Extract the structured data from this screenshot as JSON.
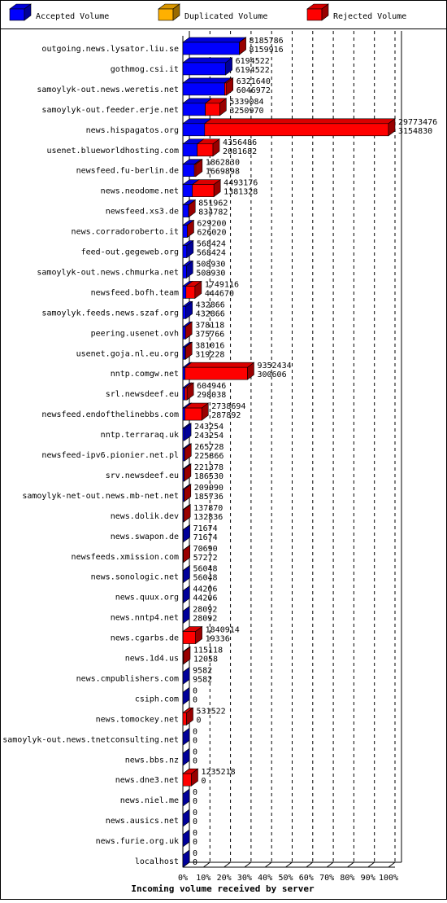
{
  "chart_data": {
    "type": "bar3d",
    "x_label": "Incoming volume received by server",
    "legend": [
      {
        "name": "Accepted Volume",
        "color": "#0000ff"
      },
      {
        "name": "Duplicated Volume",
        "color": "#ffb000"
      },
      {
        "name": "Rejected Volume",
        "color": "#ff0000"
      }
    ],
    "categories": [
      "outgoing.news.lysator.liu.se",
      "gothmog.csi.it",
      "samoylyk-out.news.weretis.net",
      "samoylyk-out.feeder.erje.net",
      "news.hispagatos.org",
      "usenet.blueworldhosting.com",
      "newsfeed.fu-berlin.de",
      "news.neodome.net",
      "newsfeed.xs3.de",
      "news.corradoroberto.it",
      "feed-out.gegeweb.org",
      "samoylyk-out.news.chmurka.net",
      "newsfeed.bofh.team",
      "samoylyk.feeds.news.szaf.org",
      "peering.usenet.ovh",
      "usenet.goja.nl.eu.org",
      "nntp.comgw.net",
      "srl.newsdeef.eu",
      "newsfeed.endofthelinebbs.com",
      "nntp.terraraq.uk",
      "newsfeed-ipv6.pionier.net.pl",
      "srv.newsdeef.eu",
      "samoylyk-net-out.news.mb-net.net",
      "news.dolik.dev",
      "news.swapon.de",
      "newsfeeds.xmission.com",
      "news.sonologic.net",
      "news.quux.org",
      "news.nntp4.net",
      "news.cgarbs.de",
      "news.1d4.us",
      "news.cmpublishers.com",
      "csiph.com",
      "news.tomockey.net",
      "samoylyk-out.news.tnetconsulting.net",
      "news.bbs.nz",
      "news.dne3.net",
      "news.niel.me",
      "news.ausics.net",
      "news.furie.org.uk",
      "localhost"
    ],
    "total_values": [
      8185786,
      6194522,
      6321640,
      5339084,
      29773476,
      4356486,
      1862830,
      4493176,
      851962,
      629200,
      568424,
      508930,
      1749116,
      432866,
      378118,
      381016,
      9352434,
      604946,
      2738694,
      243254,
      265728,
      221378,
      209090,
      137870,
      71674,
      70690,
      56048,
      44206,
      28092,
      1840914,
      115118,
      9582,
      0,
      531522,
      0,
      0,
      1235218,
      0,
      0,
      0,
      0
    ],
    "accepted_values": [
      8159916,
      6194522,
      6046972,
      3250970,
      3154830,
      2081682,
      1669898,
      1381328,
      834782,
      626020,
      568424,
      508930,
      444670,
      432866,
      375766,
      319228,
      300606,
      298038,
      287892,
      243254,
      225866,
      186530,
      185736,
      132836,
      71674,
      57272,
      56048,
      44206,
      28092,
      19336,
      12058,
      9582,
      0,
      0,
      0,
      0,
      0,
      0,
      0,
      0,
      0
    ],
    "xlim": [
      0,
      29773476
    ],
    "xticks": [
      {
        "value": 0,
        "label": "0%"
      },
      {
        "value": 2977347.6,
        "label": "10%"
      },
      {
        "value": 5954695.2,
        "label": "20%"
      },
      {
        "value": 8932042.8,
        "label": "30%"
      },
      {
        "value": 11909390.4,
        "label": "40%"
      },
      {
        "value": 14886738,
        "label": "50%"
      },
      {
        "value": 17864085.6,
        "label": "60%"
      },
      {
        "value": 20841433.2,
        "label": "70%"
      },
      {
        "value": 23818780.8,
        "label": "80%"
      },
      {
        "value": 26796128.4,
        "label": "90%"
      },
      {
        "value": 29773476,
        "label": "100%"
      }
    ],
    "grid": true
  }
}
